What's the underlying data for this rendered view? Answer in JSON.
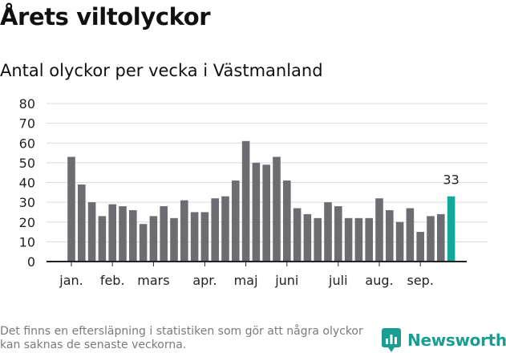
{
  "title": "Årets viltolyckor",
  "subtitle": "Antal olyckor per vecka i Västmanland",
  "note": "Det finns en eftersläpning i statistiken som gör att några olyckor kan saknas de senaste veckorna.",
  "brand": {
    "name": "Newsworthy",
    "icon": "newsworthy-logo-icon",
    "color": "#1a9e93"
  },
  "colors": {
    "bar": "#6d6c72",
    "highlight": "#14a89b",
    "grid": "#d9d9d9",
    "axis": "#222222"
  },
  "chart_data": {
    "type": "bar",
    "title": "Antal olyckor per vecka i Västmanland",
    "xlabel": "",
    "ylabel": "",
    "ylim": [
      0,
      80
    ],
    "yticks": [
      0,
      10,
      20,
      30,
      40,
      50,
      60,
      70,
      80
    ],
    "grid": true,
    "weeks": [
      1,
      2,
      3,
      4,
      5,
      6,
      7,
      8,
      9,
      10,
      11,
      12,
      13,
      14,
      15,
      16,
      17,
      18,
      19,
      20,
      21,
      22,
      23,
      24,
      25,
      26,
      27,
      28,
      29,
      30,
      31,
      32,
      33,
      34,
      35,
      36,
      37,
      38
    ],
    "values": [
      53,
      39,
      30,
      23,
      29,
      28,
      26,
      19,
      23,
      28,
      22,
      31,
      25,
      25,
      32,
      33,
      41,
      61,
      50,
      49,
      53,
      41,
      27,
      24,
      22,
      30,
      28,
      22,
      22,
      22,
      32,
      26,
      20,
      27,
      15,
      23,
      24,
      33
    ],
    "highlight_index": 37,
    "highlight_label": "33",
    "month_ticks": [
      {
        "label": "jan.",
        "week_index": 0
      },
      {
        "label": "feb.",
        "week_index": 4
      },
      {
        "label": "mars",
        "week_index": 8
      },
      {
        "label": "apr.",
        "week_index": 13
      },
      {
        "label": "maj",
        "week_index": 17
      },
      {
        "label": "juni",
        "week_index": 21
      },
      {
        "label": "juli",
        "week_index": 26
      },
      {
        "label": "aug.",
        "week_index": 30
      },
      {
        "label": "sep.",
        "week_index": 34
      }
    ]
  }
}
